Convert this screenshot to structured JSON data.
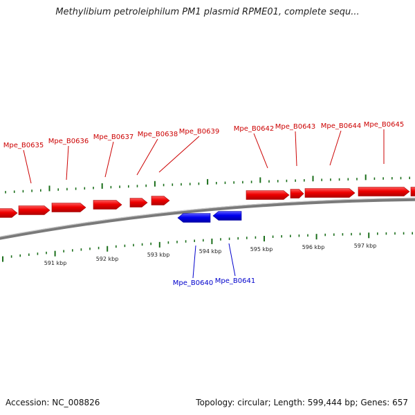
{
  "title": "Methylibium petroleiphilum PM1 plasmid RPME01, complete sequ...",
  "footer": {
    "accession": "Accession: NC_008826",
    "summary": "Topology: circular; Length: 599,444 bp; Genes: 657"
  },
  "colors": {
    "forward_gene": "#e00000",
    "reverse_gene": "#0000e0",
    "forward_label": "#cc0000",
    "reverse_label": "#0000cc",
    "tick": "#1a6e1a",
    "backbone": "#808080"
  },
  "genes_forward": [
    {
      "name": "Mpe_B0635"
    },
    {
      "name": "Mpe_B0636"
    },
    {
      "name": "Mpe_B0637"
    },
    {
      "name": "Mpe_B0638"
    },
    {
      "name": "Mpe_B0639"
    },
    {
      "name": "Mpe_B0642"
    },
    {
      "name": "Mpe_B0643"
    },
    {
      "name": "Mpe_B0644"
    },
    {
      "name": "Mpe_B0645"
    }
  ],
  "genes_reverse": [
    {
      "name": "Mpe_B0640"
    },
    {
      "name": "Mpe_B0641"
    }
  ],
  "scale_labels": [
    "591 kbp",
    "592 kbp",
    "593 kbp",
    "594 kbp",
    "595 kbp",
    "596 kbp",
    "597 kbp"
  ]
}
